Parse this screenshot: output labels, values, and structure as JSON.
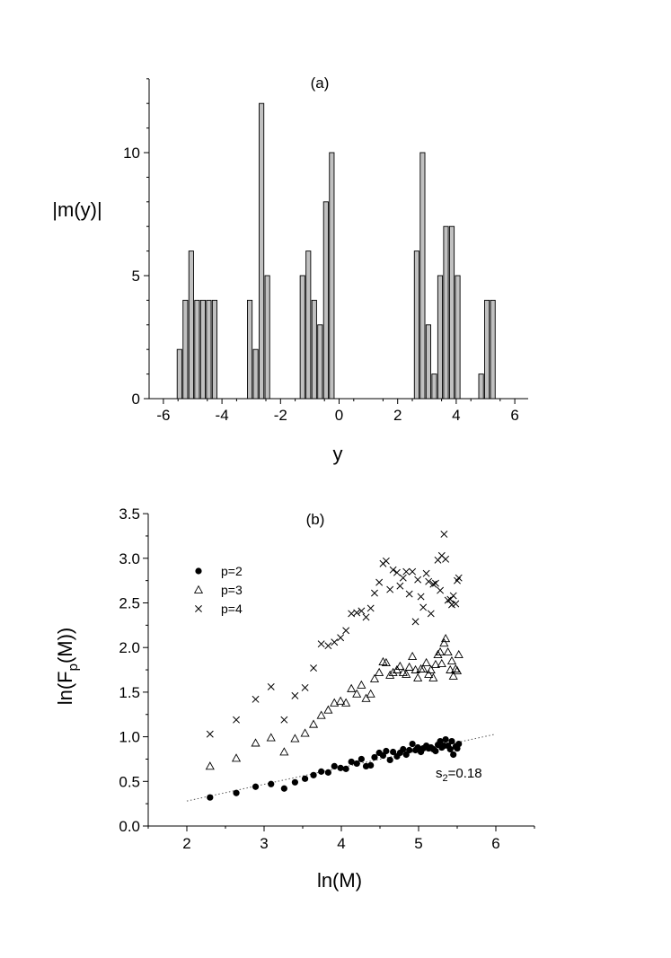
{
  "chart_data": [
    {
      "type": "bar",
      "panel_label": "(a)",
      "xlabel": "y",
      "ylabel": "|m(y)|",
      "xlim": [
        -6.5,
        6.5
      ],
      "ylim": [
        0,
        13
      ],
      "xticks": [
        -6,
        -4,
        -2,
        0,
        2,
        4,
        6
      ],
      "xtick_labels": [
        "-6",
        "-4",
        "-2",
        "0",
        "2",
        "4",
        "6"
      ],
      "yticks": [
        0,
        5,
        10
      ],
      "ytick_labels": [
        "0",
        "5",
        "10"
      ],
      "bar_color": "#c0c0c0",
      "bar_width": 0.16,
      "bars": [
        {
          "x": -5.45,
          "value": 2
        },
        {
          "x": -5.25,
          "value": 4
        },
        {
          "x": -5.05,
          "value": 6
        },
        {
          "x": -4.85,
          "value": 4
        },
        {
          "x": -4.65,
          "value": 4
        },
        {
          "x": -4.45,
          "value": 4
        },
        {
          "x": -4.25,
          "value": 4
        },
        {
          "x": -3.05,
          "value": 4
        },
        {
          "x": -2.85,
          "value": 2
        },
        {
          "x": -2.65,
          "value": 12
        },
        {
          "x": -2.45,
          "value": 5
        },
        {
          "x": -1.25,
          "value": 5
        },
        {
          "x": -1.05,
          "value": 6
        },
        {
          "x": -0.85,
          "value": 4
        },
        {
          "x": -0.65,
          "value": 3
        },
        {
          "x": -0.45,
          "value": 8
        },
        {
          "x": -0.25,
          "value": 10
        },
        {
          "x": 2.65,
          "value": 6
        },
        {
          "x": 2.85,
          "value": 10
        },
        {
          "x": 3.05,
          "value": 3
        },
        {
          "x": 3.25,
          "value": 1
        },
        {
          "x": 3.45,
          "value": 5
        },
        {
          "x": 3.65,
          "value": 7
        },
        {
          "x": 3.85,
          "value": 7
        },
        {
          "x": 4.05,
          "value": 5
        },
        {
          "x": 4.85,
          "value": 1
        },
        {
          "x": 5.05,
          "value": 4
        },
        {
          "x": 5.25,
          "value": 4
        }
      ]
    },
    {
      "type": "scatter",
      "panel_label": "(b)",
      "xlabel": "ln(M)",
      "ylabel_prefix": "ln(F",
      "ylabel_sub": "p",
      "ylabel_suffix": "(M))",
      "xlim": [
        1.5,
        6.5
      ],
      "ylim": [
        0,
        3.5
      ],
      "xticks": [
        2,
        3,
        4,
        5,
        6
      ],
      "xtick_labels": [
        "2",
        "3",
        "4",
        "5",
        "6"
      ],
      "yticks": [
        0,
        0.5,
        1.0,
        1.5,
        2.0,
        2.5,
        3.0,
        3.5
      ],
      "ytick_labels": [
        "0.0",
        "0.5",
        "1.0",
        "1.5",
        "2.0",
        "2.5",
        "3.0",
        "3.5"
      ],
      "annotation_prefix": "s",
      "annotation_sub": "2",
      "annotation_suffix": "=0.18",
      "fit_line": {
        "x": [
          2.0,
          6.0
        ],
        "y": [
          0.28,
          1.03
        ],
        "style": "dotted"
      },
      "legend": [
        "p=2",
        "p=3",
        "p=4"
      ],
      "series": [
        {
          "name": "p=2",
          "marker": "filled-circle",
          "points": [
            [
              2.3,
              0.32
            ],
            [
              2.64,
              0.37
            ],
            [
              2.89,
              0.44
            ],
            [
              3.09,
              0.47
            ],
            [
              3.26,
              0.42
            ],
            [
              3.4,
              0.49
            ],
            [
              3.53,
              0.53
            ],
            [
              3.64,
              0.57
            ],
            [
              3.74,
              0.61
            ],
            [
              3.83,
              0.6
            ],
            [
              3.91,
              0.67
            ],
            [
              3.99,
              0.65
            ],
            [
              4.06,
              0.64
            ],
            [
              4.13,
              0.72
            ],
            [
              4.2,
              0.7
            ],
            [
              4.26,
              0.75
            ],
            [
              4.32,
              0.67
            ],
            [
              4.38,
              0.68
            ],
            [
              4.43,
              0.77
            ],
            [
              4.49,
              0.82
            ],
            [
              4.54,
              0.79
            ],
            [
              4.58,
              0.84
            ],
            [
              4.63,
              0.74
            ],
            [
              4.67,
              0.83
            ],
            [
              4.72,
              0.78
            ],
            [
              4.76,
              0.82
            ],
            [
              4.8,
              0.86
            ],
            [
              4.84,
              0.8
            ],
            [
              4.88,
              0.85
            ],
            [
              4.92,
              0.92
            ],
            [
              4.96,
              0.85
            ],
            [
              4.99,
              0.88
            ],
            [
              5.03,
              0.83
            ],
            [
              5.06,
              0.87
            ],
            [
              5.1,
              0.9
            ],
            [
              5.13,
              0.87
            ],
            [
              5.16,
              0.88
            ],
            [
              5.19,
              0.86
            ],
            [
              5.22,
              0.84
            ],
            [
              5.25,
              0.91
            ],
            [
              5.28,
              0.95
            ],
            [
              5.3,
              0.88
            ],
            [
              5.33,
              0.9
            ],
            [
              5.35,
              0.97
            ],
            [
              5.38,
              0.9
            ],
            [
              5.41,
              0.86
            ],
            [
              5.43,
              0.95
            ],
            [
              5.45,
              0.8
            ],
            [
              5.48,
              0.89
            ],
            [
              5.5,
              0.87
            ],
            [
              5.52,
              0.92
            ]
          ]
        },
        {
          "name": "p=3",
          "marker": "open-triangle",
          "points": [
            [
              2.3,
              0.67
            ],
            [
              2.64,
              0.76
            ],
            [
              2.89,
              0.93
            ],
            [
              3.09,
              0.99
            ],
            [
              3.26,
              0.83
            ],
            [
              3.4,
              0.98
            ],
            [
              3.53,
              1.04
            ],
            [
              3.64,
              1.14
            ],
            [
              3.74,
              1.24
            ],
            [
              3.83,
              1.3
            ],
            [
              3.91,
              1.38
            ],
            [
              3.99,
              1.4
            ],
            [
              4.06,
              1.38
            ],
            [
              4.13,
              1.54
            ],
            [
              4.2,
              1.48
            ],
            [
              4.26,
              1.58
            ],
            [
              4.32,
              1.43
            ],
            [
              4.38,
              1.48
            ],
            [
              4.43,
              1.65
            ],
            [
              4.49,
              1.72
            ],
            [
              4.54,
              1.84
            ],
            [
              4.58,
              1.83
            ],
            [
              4.63,
              1.69
            ],
            [
              4.67,
              1.72
            ],
            [
              4.72,
              1.75
            ],
            [
              4.76,
              1.79
            ],
            [
              4.8,
              1.72
            ],
            [
              4.84,
              1.7
            ],
            [
              4.88,
              1.78
            ],
            [
              4.92,
              1.9
            ],
            [
              4.96,
              1.75
            ],
            [
              4.99,
              1.66
            ],
            [
              5.03,
              1.76
            ],
            [
              5.06,
              1.76
            ],
            [
              5.1,
              1.83
            ],
            [
              5.13,
              1.7
            ],
            [
              5.16,
              1.75
            ],
            [
              5.19,
              1.66
            ],
            [
              5.22,
              1.81
            ],
            [
              5.25,
              1.92
            ],
            [
              5.28,
              1.95
            ],
            [
              5.3,
              1.82
            ],
            [
              5.33,
              2.05
            ],
            [
              5.35,
              2.1
            ],
            [
              5.38,
              1.95
            ],
            [
              5.41,
              1.75
            ],
            [
              5.43,
              1.85
            ],
            [
              5.45,
              1.68
            ],
            [
              5.48,
              1.76
            ],
            [
              5.5,
              1.74
            ],
            [
              5.52,
              1.92
            ]
          ]
        },
        {
          "name": "p=4",
          "marker": "cross",
          "points": [
            [
              2.3,
              1.03
            ],
            [
              2.64,
              1.19
            ],
            [
              2.89,
              1.42
            ],
            [
              3.09,
              1.56
            ],
            [
              3.26,
              1.19
            ],
            [
              3.4,
              1.46
            ],
            [
              3.53,
              1.55
            ],
            [
              3.64,
              1.77
            ],
            [
              3.74,
              2.04
            ],
            [
              3.83,
              2.02
            ],
            [
              3.91,
              2.06
            ],
            [
              3.99,
              2.11
            ],
            [
              4.06,
              2.19
            ],
            [
              4.13,
              2.38
            ],
            [
              4.2,
              2.39
            ],
            [
              4.26,
              2.41
            ],
            [
              4.32,
              2.34
            ],
            [
              4.38,
              2.44
            ],
            [
              4.43,
              2.61
            ],
            [
              4.49,
              2.73
            ],
            [
              4.54,
              2.94
            ],
            [
              4.58,
              2.97
            ],
            [
              4.63,
              2.65
            ],
            [
              4.67,
              2.87
            ],
            [
              4.72,
              2.84
            ],
            [
              4.76,
              2.69
            ],
            [
              4.8,
              2.78
            ],
            [
              4.84,
              2.85
            ],
            [
              4.88,
              2.6
            ],
            [
              4.92,
              2.85
            ],
            [
              4.96,
              2.29
            ],
            [
              4.99,
              2.76
            ],
            [
              5.03,
              2.57
            ],
            [
              5.06,
              2.45
            ],
            [
              5.1,
              2.83
            ],
            [
              5.13,
              2.74
            ],
            [
              5.16,
              2.38
            ],
            [
              5.19,
              2.71
            ],
            [
              5.22,
              2.72
            ],
            [
              5.25,
              2.98
            ],
            [
              5.28,
              2.64
            ],
            [
              5.3,
              3.03
            ],
            [
              5.33,
              3.27
            ],
            [
              5.35,
              2.99
            ],
            [
              5.38,
              2.53
            ],
            [
              5.41,
              2.54
            ],
            [
              5.43,
              2.48
            ],
            [
              5.45,
              2.58
            ],
            [
              5.48,
              2.49
            ],
            [
              5.5,
              2.75
            ],
            [
              5.52,
              2.78
            ]
          ]
        }
      ]
    }
  ]
}
